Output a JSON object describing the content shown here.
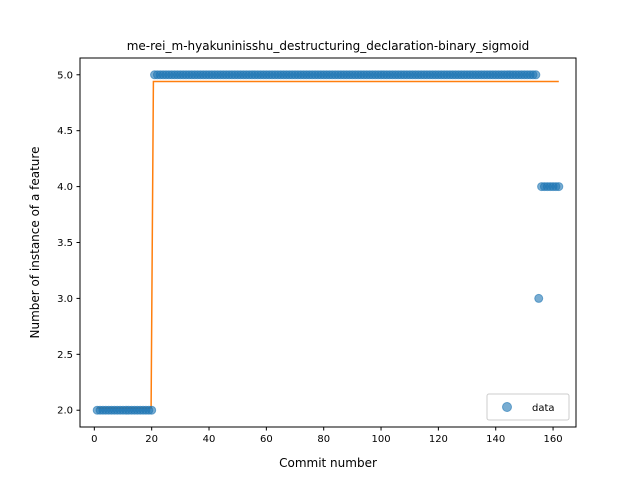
{
  "chart_data": {
    "type": "scatter",
    "title": "me-rei_m-hyakuninisshu_destructuring_declaration-binary_sigmoid",
    "xlabel": "Commit number",
    "ylabel": "Number of instance of a feature",
    "xlim": [
      -5,
      168
    ],
    "ylim": [
      1.85,
      5.15
    ],
    "xticks": [
      0,
      20,
      40,
      60,
      80,
      100,
      120,
      140,
      160
    ],
    "yticks": [
      2.0,
      2.5,
      3.0,
      3.5,
      4.0,
      4.5,
      5.0
    ],
    "ytick_labels": [
      "2.0",
      "2.5",
      "3.0",
      "3.5",
      "4.0",
      "4.5",
      "5.0"
    ],
    "grid": false,
    "legend_position": "bottom-right",
    "legend": [
      "data"
    ],
    "colors": {
      "data": "#1f77b4",
      "fit": "#ff7f0e"
    },
    "series": [
      {
        "name": "data",
        "kind": "scatter",
        "segments": [
          {
            "x_from": 1,
            "x_to": 20,
            "y": 2.0
          },
          {
            "x_from": 21,
            "x_to": 154,
            "y": 5.0
          },
          {
            "x_from": 155,
            "x_to": 155,
            "y": 3.0
          },
          {
            "x_from": 156,
            "x_to": 162,
            "y": 4.0
          }
        ]
      },
      {
        "kind": "line",
        "x": [
          1,
          19.8,
          20.6,
          162
        ],
        "y": [
          2.02,
          2.02,
          4.94,
          4.94
        ]
      }
    ]
  }
}
